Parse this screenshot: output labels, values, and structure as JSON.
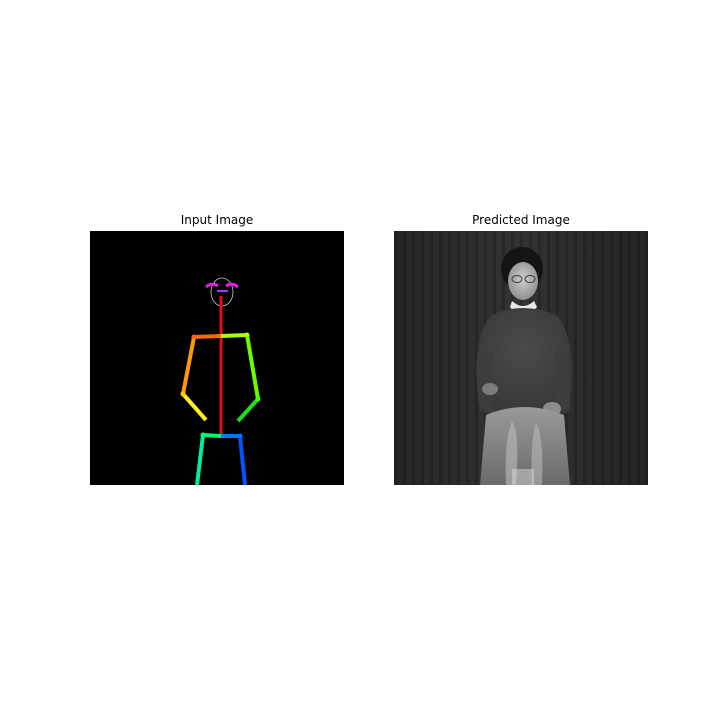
{
  "figure": {
    "left_title": "Input Image",
    "right_title": "Predicted Image"
  },
  "colors": {
    "figure_background": "#ffffff",
    "input_background": "#000000",
    "predicted_background": "#2b2b2b",
    "spine": "#e10f18",
    "shoulder_left": "#ff6a00",
    "shoulder_right": "#aaff00",
    "upper_arm_left": "#ff9900",
    "forearm_left": "#ffee22",
    "upper_arm_right": "#66ff00",
    "forearm_right": "#22dd22",
    "hip_left": "#00ff66",
    "hip_right": "#0077ff",
    "leg_left": "#00ee99",
    "leg_right": "#0055ff",
    "face": "#dd22dd"
  }
}
